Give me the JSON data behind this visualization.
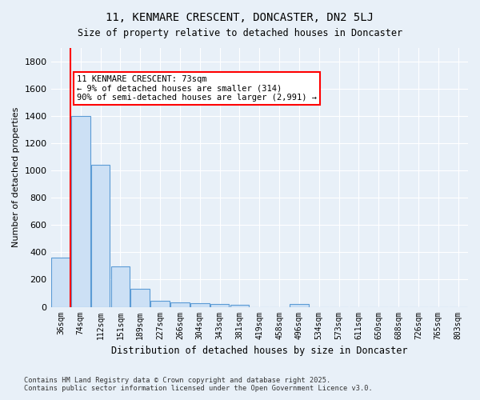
{
  "title": "11, KENMARE CRESCENT, DONCASTER, DN2 5LJ",
  "subtitle": "Size of property relative to detached houses in Doncaster",
  "xlabel": "Distribution of detached houses by size in Doncaster",
  "ylabel": "Number of detached properties",
  "categories": [
    "36sqm",
    "74sqm",
    "112sqm",
    "151sqm",
    "189sqm",
    "227sqm",
    "266sqm",
    "304sqm",
    "343sqm",
    "381sqm",
    "419sqm",
    "458sqm",
    "496sqm",
    "534sqm",
    "573sqm",
    "611sqm",
    "650sqm",
    "688sqm",
    "726sqm",
    "765sqm",
    "803sqm"
  ],
  "values": [
    360,
    1400,
    1040,
    295,
    130,
    42,
    35,
    28,
    20,
    13,
    0,
    0,
    20,
    0,
    0,
    0,
    0,
    0,
    0,
    0,
    0
  ],
  "bar_color": "#cce0f5",
  "bar_edge_color": "#5b9bd5",
  "red_line_x": 1,
  "annotation_title": "11 KENMARE CRESCENT: 73sqm",
  "annotation_line1": "← 9% of detached houses are smaller (314)",
  "annotation_line2": "90% of semi-detached houses are larger (2,991) →",
  "ylim": [
    0,
    1900
  ],
  "yticks": [
    0,
    200,
    400,
    600,
    800,
    1000,
    1200,
    1400,
    1600,
    1800
  ],
  "background_color": "#e8f0f8",
  "grid_color": "#ffffff",
  "footer_line1": "Contains HM Land Registry data © Crown copyright and database right 2025.",
  "footer_line2": "Contains public sector information licensed under the Open Government Licence v3.0."
}
